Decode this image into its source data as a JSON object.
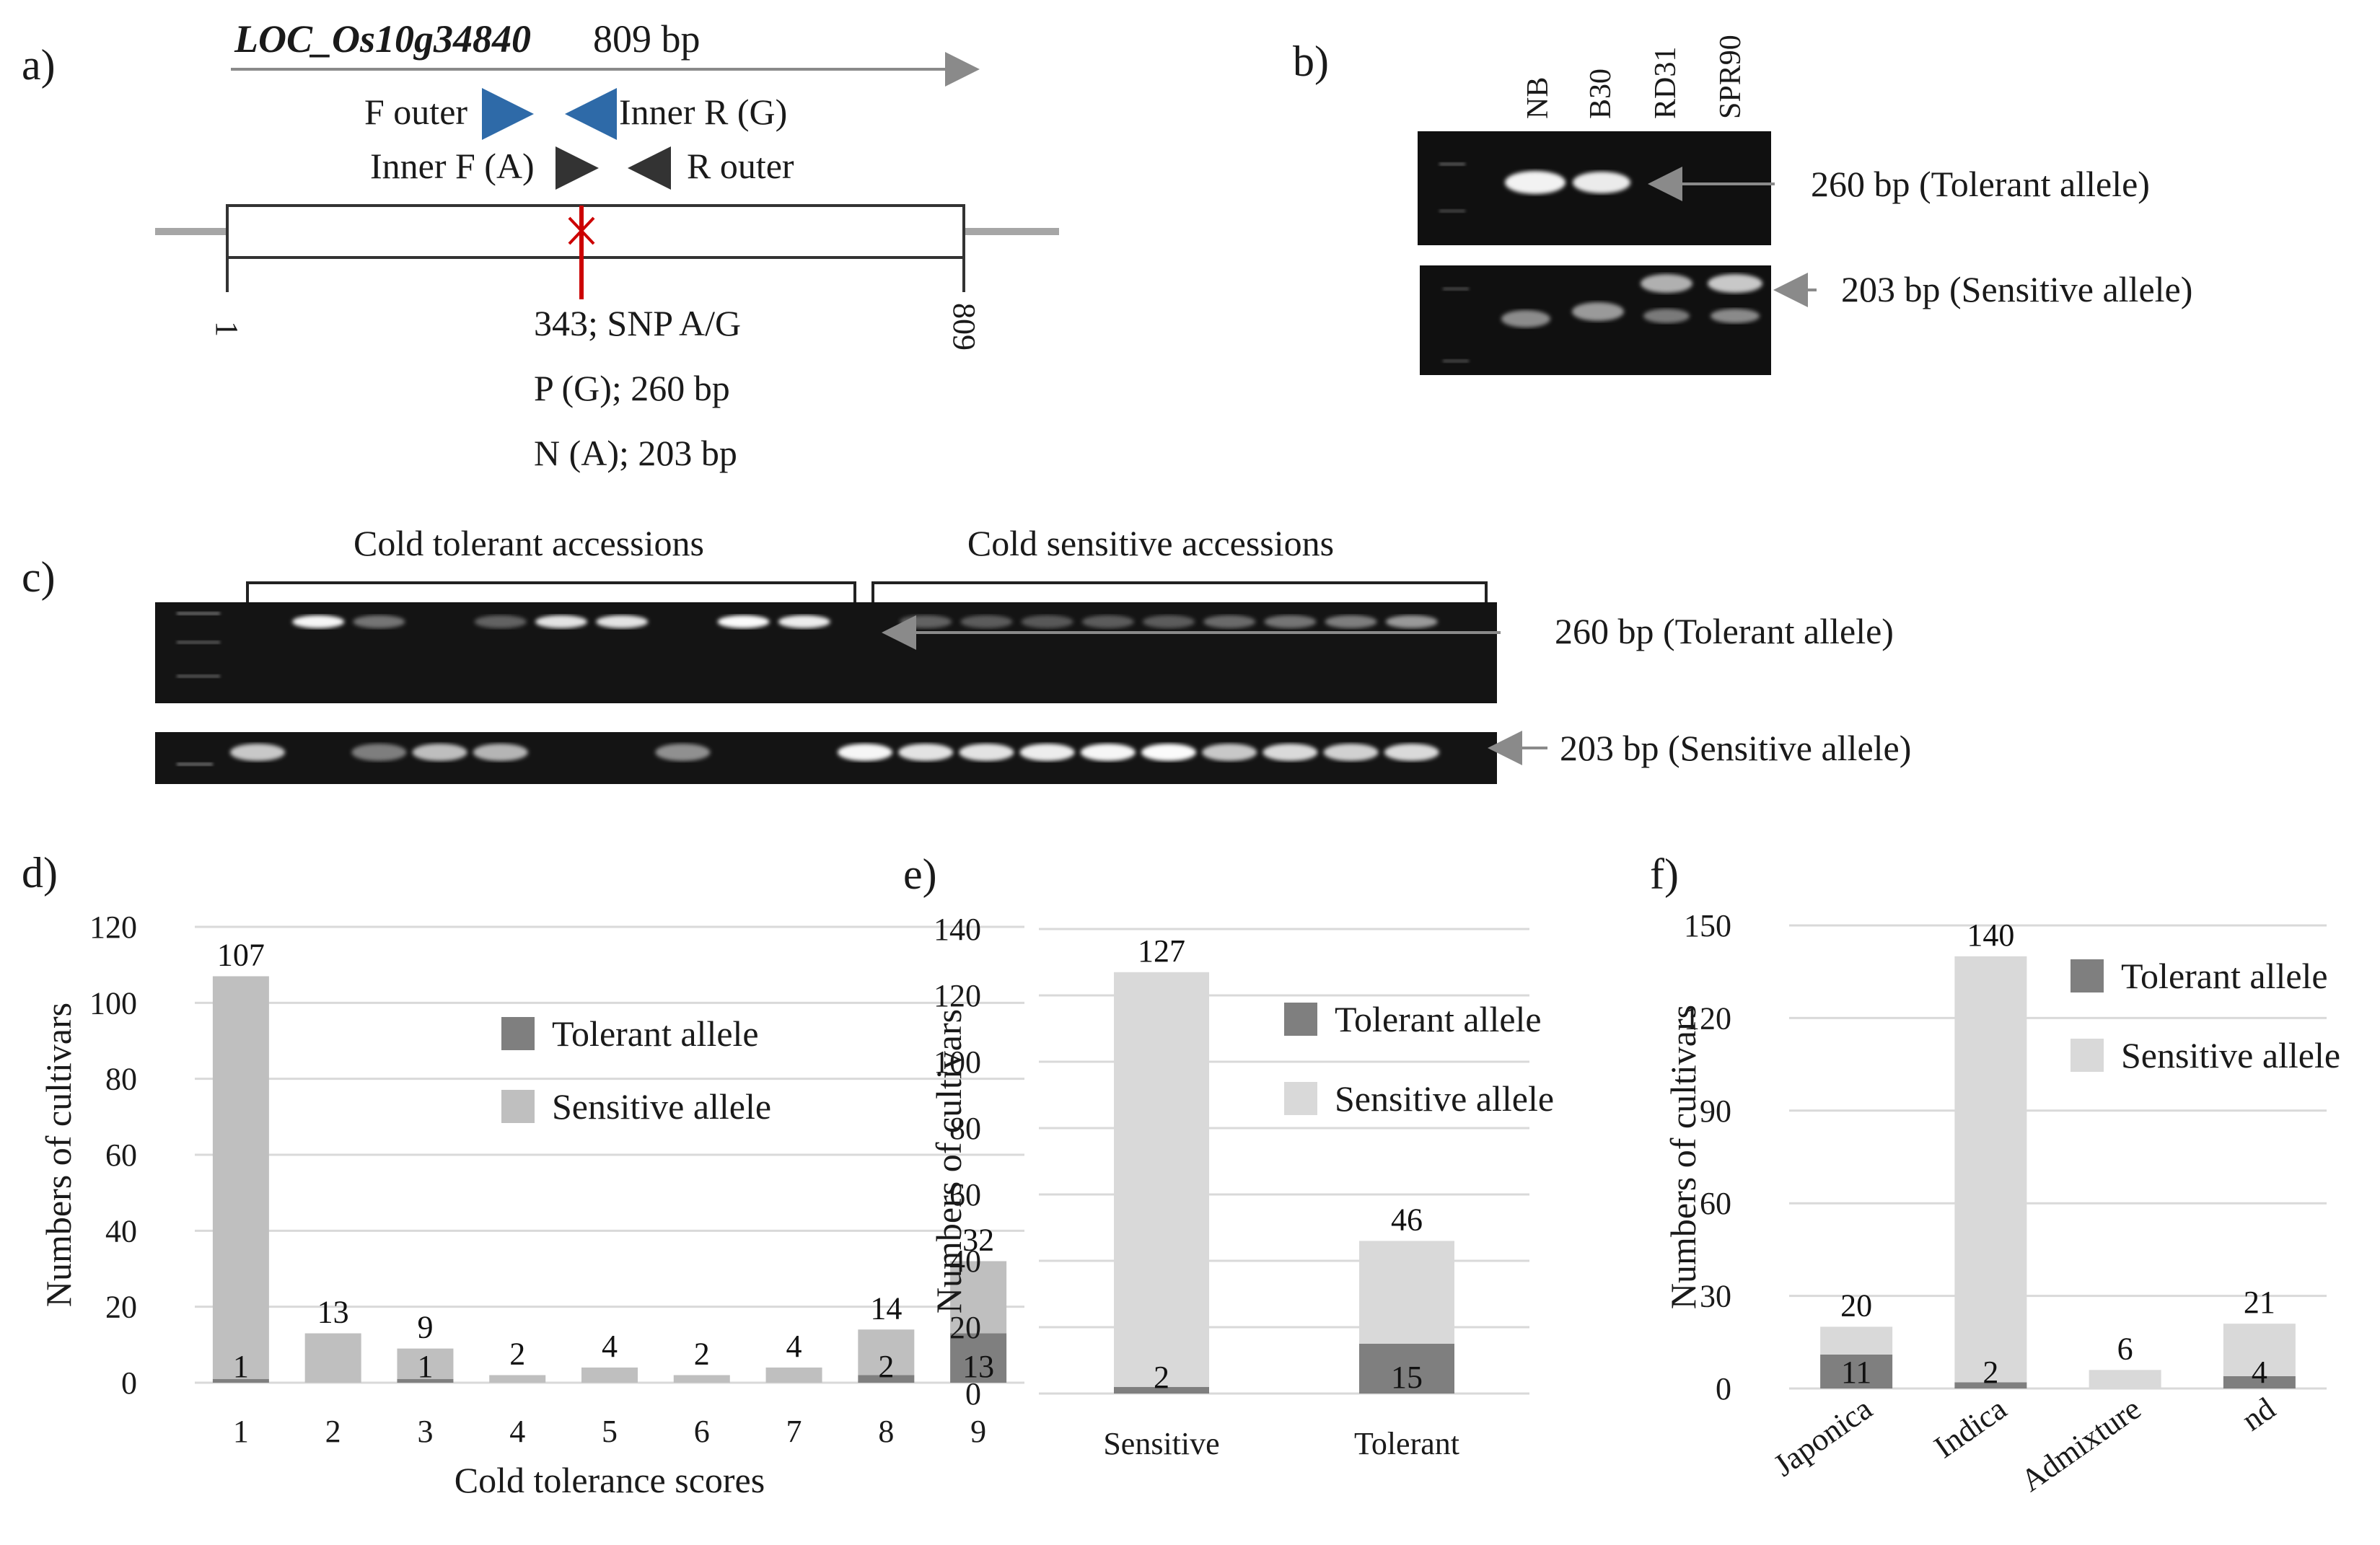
{
  "panel_a": {
    "letter": "a)",
    "gene_name": "LOC_Os10g34840",
    "gene_length": "809 bp",
    "f_outer": "F outer",
    "inner_r": "Inner R (G)",
    "inner_f": "Inner F (A)",
    "r_outer": "R outer",
    "start_pos": "1",
    "end_pos": "809",
    "snp_label": "343; SNP A/G",
    "p_label": "P (G); 260 bp",
    "n_label": "N (A); 203 bp",
    "colors": {
      "forward_primer": "#2e6aa8",
      "snp_marker": "#cc0000"
    }
  },
  "panel_b": {
    "letter": "b)",
    "lanes": [
      "NB",
      "B30",
      "RD31",
      "SPR90"
    ],
    "tolerant_label": "260 bp (Tolerant allele)",
    "sensitive_label": "203 bp (Sensitive allele)"
  },
  "panel_c": {
    "letter": "c)",
    "group_tolerant": "Cold tolerant accessions",
    "group_sensitive": "Cold sensitive accessions",
    "tolerant_label": "260 bp (Tolerant allele)",
    "sensitive_label": "203 bp (Sensitive allele)"
  },
  "legend": {
    "tolerant": "Tolerant allele",
    "sensitive": "Sensitive allele"
  },
  "colors": {
    "tolerant": "#7f7f7f",
    "sensitive_d": "#bfbfbf",
    "sensitive_ef": "#d9d9d9",
    "grid": "#d9d9d9"
  },
  "chart_data": [
    {
      "panel": "d)",
      "type": "bar",
      "stacked": true,
      "categories": [
        "1",
        "2",
        "3",
        "4",
        "5",
        "6",
        "7",
        "8",
        "9"
      ],
      "series": [
        {
          "name": "Tolerant allele",
          "values": [
            1,
            0,
            1,
            0,
            0,
            0,
            0,
            2,
            13
          ]
        },
        {
          "name": "Sensitive allele",
          "values": [
            106,
            13,
            8,
            2,
            4,
            2,
            4,
            12,
            19
          ]
        }
      ],
      "totals": [
        107,
        13,
        9,
        2,
        4,
        2,
        4,
        14,
        32
      ],
      "tolerant_labels": [
        "1",
        "",
        "1",
        "",
        "",
        "",
        "",
        "2",
        "13"
      ],
      "xlabel": "Cold tolerance scores",
      "ylabel": "Numbers of cultivars",
      "ylim": [
        0,
        120
      ],
      "yticks": [
        0,
        20,
        40,
        60,
        80,
        100,
        120
      ],
      "grid": true,
      "legend_position": "right"
    },
    {
      "panel": "e)",
      "type": "bar",
      "stacked": true,
      "categories": [
        "Sensitive",
        "Tolerant"
      ],
      "series": [
        {
          "name": "Tolerant allele",
          "values": [
            2,
            15
          ]
        },
        {
          "name": "Sensitive allele",
          "values": [
            125,
            31
          ]
        }
      ],
      "totals": [
        127,
        46
      ],
      "tolerant_labels": [
        "2",
        "15"
      ],
      "xlabel": "",
      "ylabel": "Numbers of cultivars",
      "ylim": [
        0,
        140
      ],
      "yticks": [
        0,
        20,
        40,
        60,
        80,
        100,
        120,
        140
      ],
      "grid": true,
      "legend_position": "right"
    },
    {
      "panel": "f)",
      "type": "bar",
      "stacked": true,
      "categories": [
        "Japonica",
        "Indica",
        "Admixture",
        "nd"
      ],
      "series": [
        {
          "name": "Tolerant allele",
          "values": [
            11,
            2,
            0,
            4
          ]
        },
        {
          "name": "Sensitive allele",
          "values": [
            9,
            138,
            6,
            17
          ]
        }
      ],
      "totals": [
        20,
        140,
        6,
        21
      ],
      "tolerant_labels": [
        "11",
        "2",
        "",
        "4"
      ],
      "xlabel": "",
      "ylabel": "Numbers of cultivars",
      "ylim": [
        0,
        150
      ],
      "yticks": [
        0,
        30,
        60,
        90,
        120,
        150
      ],
      "grid": true,
      "legend_position": "right"
    }
  ]
}
